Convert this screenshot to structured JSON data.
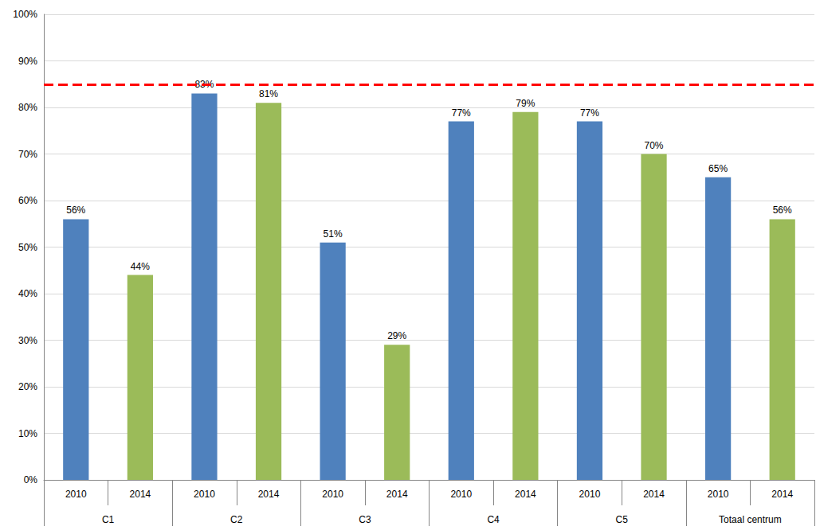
{
  "chart_data": {
    "type": "bar",
    "categories": [
      "2010",
      "2014",
      "2010",
      "2014",
      "2010",
      "2014",
      "2010",
      "2014",
      "2010",
      "2014",
      "2010",
      "2014"
    ],
    "groups": [
      "C1",
      "C2",
      "C3",
      "C4",
      "C5",
      "Totaal centrum"
    ],
    "values": [
      56,
      44,
      83,
      81,
      51,
      29,
      77,
      79,
      77,
      70,
      65,
      56
    ],
    "value_labels": [
      "56%",
      "44%",
      "83%",
      "81%",
      "51%",
      "29%",
      "77%",
      "79%",
      "77%",
      "70%",
      "65%",
      "56%"
    ],
    "colors": [
      "#4f81bd",
      "#9bbb59",
      "#4f81bd",
      "#9bbb59",
      "#4f81bd",
      "#9bbb59",
      "#4f81bd",
      "#9bbb59",
      "#4f81bd",
      "#9bbb59",
      "#4f81bd",
      "#9bbb59"
    ],
    "target_line": {
      "value": 85,
      "color": "#ff0000",
      "line_style": "dashed"
    },
    "ylim": [
      0,
      100
    ],
    "yticks": [
      {
        "value": 0,
        "label": "0%"
      },
      {
        "value": 10,
        "label": "10%"
      },
      {
        "value": 20,
        "label": "20%"
      },
      {
        "value": 30,
        "label": "30%"
      },
      {
        "value": 40,
        "label": "40%"
      },
      {
        "value": 50,
        "label": "50%"
      },
      {
        "value": 60,
        "label": "60%"
      },
      {
        "value": 70,
        "label": "70%"
      },
      {
        "value": 80,
        "label": "80%"
      },
      {
        "value": 90,
        "label": "90%"
      },
      {
        "value": 100,
        "label": "100%"
      }
    ],
    "grid": true,
    "data_labels": true
  }
}
